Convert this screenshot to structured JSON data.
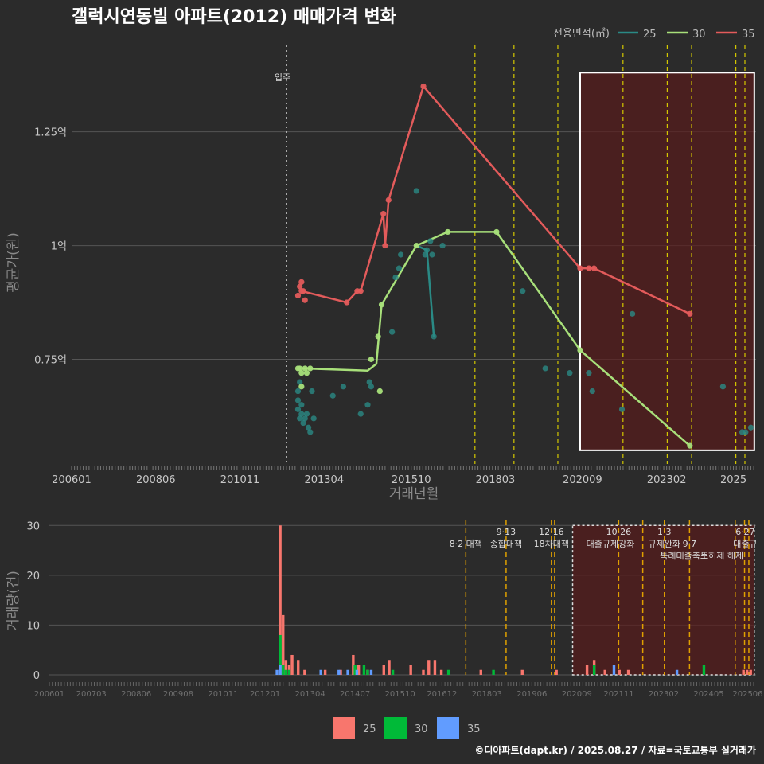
{
  "title": "갤럭시연동빌 아파트(2012) 매매가격 변화",
  "footer": "©디아파트(dapt.kr) / 2025.08.27 / 자료=국토교통부 실거래가",
  "colors": {
    "s25": "#2a8a85",
    "s30": "#a8e07a",
    "s35": "#e35b5b",
    "bar25": "#f8766d",
    "bar30": "#00ba38",
    "bar35": "#619cff",
    "policy": "#d4c800",
    "policy_bottom": "#e0a000",
    "highlight": "#5a1818"
  },
  "chart_data": [
    {
      "type": "line",
      "title": "갤럭시연동빌 아파트(2012) 매매가격 변화",
      "xlabel": "거래년월",
      "ylabel": "평균가(원)",
      "x_tick_labels": [
        "200601",
        "200806",
        "201011",
        "201304",
        "201510",
        "201803",
        "202009",
        "202302",
        "2025"
      ],
      "y_ticks": [
        {
          "v": 0.75,
          "label": "0.75억"
        },
        {
          "v": 1.0,
          "label": "1억"
        },
        {
          "v": 1.25,
          "label": "1.25억"
        }
      ],
      "ylim": [
        0.52,
        1.44
      ],
      "xlim": [
        2006.0,
        2025.65
      ],
      "legend_title": "전용면적(㎡)",
      "legend": [
        {
          "key": "s25",
          "label": "25"
        },
        {
          "key": "s30",
          "label": "30"
        },
        {
          "key": "s35",
          "label": "35"
        }
      ],
      "vline_label": "입주",
      "vline_x": 2012.17,
      "policy_lines": [
        2017.58,
        2018.7,
        2019.96,
        2021.83,
        2023.1,
        2023.8,
        2025.07,
        2025.33
      ],
      "highlight_range": [
        2020.6,
        2025.6
      ],
      "highlight_ylim": [
        0.55,
        1.38
      ],
      "series": [
        {
          "name": "25",
          "key": "s25",
          "points": [
            [
              2012.5,
              0.64
            ],
            [
              2012.5,
              0.66
            ],
            [
              2012.5,
              0.68
            ],
            [
              2012.55,
              0.62
            ],
            [
              2012.55,
              0.7
            ],
            [
              2012.6,
              0.63
            ],
            [
              2012.6,
              0.65
            ],
            [
              2012.65,
              0.61
            ],
            [
              2012.7,
              0.62
            ],
            [
              2012.75,
              0.63
            ],
            [
              2012.8,
              0.6
            ],
            [
              2012.85,
              0.59
            ],
            [
              2012.9,
              0.68
            ],
            [
              2012.95,
              0.62
            ],
            [
              2013.5,
              0.67
            ],
            [
              2013.8,
              0.69
            ],
            [
              2014.3,
              0.63
            ],
            [
              2014.5,
              0.65
            ],
            [
              2014.55,
              0.7
            ],
            [
              2014.6,
              0.69
            ],
            [
              2015.2,
              0.81
            ],
            [
              2015.3,
              0.93
            ],
            [
              2015.4,
              0.95
            ],
            [
              2015.45,
              0.98
            ],
            [
              2015.9,
              1.12
            ],
            [
              2016.15,
              0.98
            ],
            [
              2016.2,
              0.99
            ],
            [
              2016.3,
              1.01
            ],
            [
              2016.35,
              0.98
            ],
            [
              2016.4,
              0.8
            ],
            [
              2016.65,
              1.0
            ],
            [
              2018.95,
              0.9
            ],
            [
              2019.6,
              0.73
            ],
            [
              2020.3,
              0.72
            ],
            [
              2020.85,
              0.72
            ],
            [
              2020.95,
              0.68
            ],
            [
              2021.8,
              0.64
            ],
            [
              2022.1,
              0.85
            ],
            [
              2024.7,
              0.69
            ],
            [
              2025.25,
              0.59
            ],
            [
              2025.35,
              0.59
            ],
            [
              2025.5,
              0.6
            ]
          ],
          "line": [
            [
              2015.9,
              1.0
            ],
            [
              2016.2,
              0.99
            ],
            [
              2016.4,
              0.8
            ]
          ]
        },
        {
          "name": "30",
          "key": "s30",
          "points": [
            [
              2012.55,
              0.73
            ],
            [
              2012.6,
              0.72
            ],
            [
              2012.7,
              0.73
            ],
            [
              2012.75,
              0.72
            ],
            [
              2012.85,
              0.73
            ],
            [
              2012.5,
              0.73
            ],
            [
              2012.6,
              0.69
            ],
            [
              2014.6,
              0.75
            ],
            [
              2014.8,
              0.8
            ],
            [
              2014.85,
              0.68
            ],
            [
              2014.9,
              0.87
            ],
            [
              2015.9,
              1.0
            ],
            [
              2016.8,
              1.03
            ],
            [
              2018.2,
              1.03
            ],
            [
              2020.6,
              0.77
            ],
            [
              2023.75,
              0.56
            ]
          ],
          "line": [
            [
              2012.6,
              0.73
            ],
            [
              2014.5,
              0.725
            ],
            [
              2014.75,
              0.74
            ],
            [
              2014.9,
              0.87
            ],
            [
              2015.9,
              1.0
            ],
            [
              2016.8,
              1.03
            ],
            [
              2018.2,
              1.03
            ],
            [
              2020.6,
              0.77
            ],
            [
              2023.75,
              0.56
            ]
          ]
        },
        {
          "name": "35",
          "key": "s35",
          "points": [
            [
              2012.5,
              0.89
            ],
            [
              2012.55,
              0.91
            ],
            [
              2012.6,
              0.9
            ],
            [
              2012.6,
              0.92
            ],
            [
              2012.65,
              0.9
            ],
            [
              2012.7,
              0.88
            ],
            [
              2013.9,
              0.875
            ],
            [
              2014.2,
              0.9
            ],
            [
              2014.3,
              0.9
            ],
            [
              2014.95,
              1.07
            ],
            [
              2015.0,
              1.0
            ],
            [
              2015.1,
              1.1
            ],
            [
              2016.1,
              1.35
            ],
            [
              2020.6,
              0.95
            ],
            [
              2020.85,
              0.95
            ],
            [
              2021.0,
              0.95
            ],
            [
              2023.75,
              0.85
            ]
          ],
          "line": [
            [
              2012.6,
              0.9
            ],
            [
              2013.9,
              0.875
            ],
            [
              2014.2,
              0.9
            ],
            [
              2014.3,
              0.9
            ],
            [
              2014.95,
              1.07
            ],
            [
              2015.0,
              1.0
            ],
            [
              2015.1,
              1.1
            ],
            [
              2016.1,
              1.35
            ],
            [
              2020.6,
              0.95
            ],
            [
              2020.85,
              0.95
            ],
            [
              2021.0,
              0.95
            ],
            [
              2023.75,
              0.85
            ]
          ]
        }
      ]
    },
    {
      "type": "bar",
      "title": "",
      "xlabel": "",
      "ylabel": "거래량(건)",
      "x_tick_labels": [
        "200601",
        "200703",
        "200806",
        "200908",
        "201011",
        "201201",
        "201304",
        "201407",
        "201510",
        "201612",
        "201803",
        "201906",
        "202009",
        "202111",
        "202302",
        "202405",
        "202506"
      ],
      "y_ticks": [
        0,
        10,
        20,
        30
      ],
      "ylim": [
        0,
        31
      ],
      "xlim": [
        2006.0,
        2025.65
      ],
      "legend": [
        {
          "key": "bar25",
          "label": "25"
        },
        {
          "key": "bar30",
          "label": "30"
        },
        {
          "key": "bar35",
          "label": "35"
        }
      ],
      "highlight_range": [
        2020.55,
        2025.6
      ],
      "policy_lines": [
        2017.58,
        2018.7,
        2019.96,
        2020.05,
        2021.83,
        2022.5,
        2023.1,
        2023.8,
        2025.07,
        2025.33,
        2025.45
      ],
      "annotations": [
        {
          "x": 2017.58,
          "row": 1,
          "text": "8·2 대책"
        },
        {
          "x": 2018.7,
          "row": 0,
          "text": "9·13"
        },
        {
          "x": 2018.7,
          "row": 1,
          "text": "종합대책"
        },
        {
          "x": 2019.96,
          "row": 0,
          "text": "12·16"
        },
        {
          "x": 2019.96,
          "row": 1,
          "text": "18차대책"
        },
        {
          "x": 2021.83,
          "row": 0,
          "text": "10·26"
        },
        {
          "x": 2021.6,
          "row": 1,
          "text": "대출규제강화"
        },
        {
          "x": 2023.1,
          "row": 0,
          "text": "1·3"
        },
        {
          "x": 2023.1,
          "row": 1,
          "text": "규제완화"
        },
        {
          "x": 2023.8,
          "row": 1,
          "text": "9·7"
        },
        {
          "x": 2023.65,
          "row": 2,
          "text": "특례대출축소"
        },
        {
          "x": 2024.7,
          "row": 2,
          "text": "토허제 해제"
        },
        {
          "x": 2025.35,
          "row": 0,
          "text": "6·27"
        },
        {
          "x": 2025.35,
          "row": 1,
          "text": "대출규"
        }
      ],
      "series": [
        {
          "name": "25",
          "key": "bar25",
          "bars": [
            [
              2012.42,
              30
            ],
            [
              2012.5,
              12
            ],
            [
              2012.58,
              3
            ],
            [
              2012.67,
              2
            ],
            [
              2012.75,
              4
            ],
            [
              2012.92,
              3
            ],
            [
              2013.1,
              1
            ],
            [
              2013.67,
              1
            ],
            [
              2014.1,
              1
            ],
            [
              2014.45,
              4
            ],
            [
              2014.6,
              2
            ],
            [
              2014.85,
              1
            ],
            [
              2015.3,
              2
            ],
            [
              2015.45,
              3
            ],
            [
              2016.05,
              2
            ],
            [
              2016.4,
              1
            ],
            [
              2016.55,
              3
            ],
            [
              2016.72,
              3
            ],
            [
              2016.9,
              1
            ],
            [
              2018.0,
              1
            ],
            [
              2019.15,
              1
            ],
            [
              2020.1,
              1
            ],
            [
              2020.95,
              2
            ],
            [
              2021.15,
              3
            ],
            [
              2021.45,
              1
            ],
            [
              2021.85,
              1
            ],
            [
              2022.1,
              1
            ],
            [
              2025.3,
              1
            ],
            [
              2025.4,
              1
            ],
            [
              2025.5,
              1
            ]
          ]
        },
        {
          "name": "30",
          "key": "bar30",
          "bars": [
            [
              2012.42,
              8
            ],
            [
              2012.5,
              2
            ],
            [
              2012.58,
              1
            ],
            [
              2012.67,
              1
            ],
            [
              2014.5,
              2
            ],
            [
              2014.75,
              2
            ],
            [
              2014.85,
              1
            ],
            [
              2015.55,
              1
            ],
            [
              2017.1,
              1
            ],
            [
              2018.35,
              1
            ],
            [
              2021.15,
              2
            ],
            [
              2024.2,
              2
            ]
          ]
        },
        {
          "name": "35",
          "key": "bar35",
          "bars": [
            [
              2012.33,
              1
            ],
            [
              2012.42,
              2
            ],
            [
              2013.55,
              1
            ],
            [
              2014.05,
              1
            ],
            [
              2014.3,
              1
            ],
            [
              2014.55,
              1
            ],
            [
              2014.95,
              1
            ],
            [
              2021.7,
              2
            ],
            [
              2023.45,
              1
            ]
          ]
        }
      ]
    }
  ]
}
